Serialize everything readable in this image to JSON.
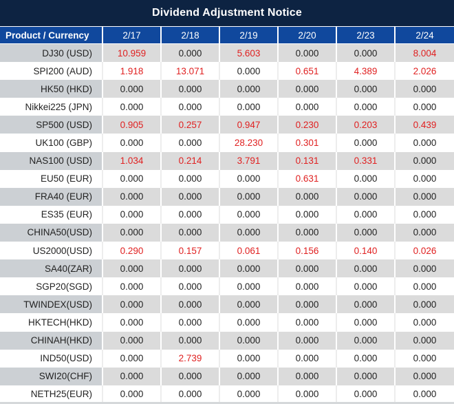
{
  "title": "Dividend Adjustment Notice",
  "chart_data": {
    "type": "table",
    "title": "Dividend Adjustment Notice",
    "columns": [
      "Product / Currency",
      "2/17",
      "2/18",
      "2/19",
      "2/20",
      "2/23",
      "2/24"
    ],
    "rows": [
      {
        "product": "DJ30 (USD)",
        "values": [
          "10.959",
          "0.000",
          "5.603",
          "0.000",
          "0.000",
          "8.004"
        ]
      },
      {
        "product": "SPI200 (AUD)",
        "values": [
          "1.918",
          "13.071",
          "0.000",
          "0.651",
          "4.389",
          "2.026"
        ]
      },
      {
        "product": "HK50 (HKD)",
        "values": [
          "0.000",
          "0.000",
          "0.000",
          "0.000",
          "0.000",
          "0.000"
        ]
      },
      {
        "product": "Nikkei225 (JPN)",
        "values": [
          "0.000",
          "0.000",
          "0.000",
          "0.000",
          "0.000",
          "0.000"
        ]
      },
      {
        "product": "SP500 (USD)",
        "values": [
          "0.905",
          "0.257",
          "0.947",
          "0.230",
          "0.203",
          "0.439"
        ]
      },
      {
        "product": "UK100 (GBP)",
        "values": [
          "0.000",
          "0.000",
          "28.230",
          "0.301",
          "0.000",
          "0.000"
        ]
      },
      {
        "product": "NAS100 (USD)",
        "values": [
          "1.034",
          "0.214",
          "3.791",
          "0.131",
          "0.331",
          "0.000"
        ]
      },
      {
        "product": "EU50 (EUR)",
        "values": [
          "0.000",
          "0.000",
          "0.000",
          "0.631",
          "0.000",
          "0.000"
        ]
      },
      {
        "product": "FRA40 (EUR)",
        "values": [
          "0.000",
          "0.000",
          "0.000",
          "0.000",
          "0.000",
          "0.000"
        ]
      },
      {
        "product": "ES35 (EUR)",
        "values": [
          "0.000",
          "0.000",
          "0.000",
          "0.000",
          "0.000",
          "0.000"
        ]
      },
      {
        "product": "CHINA50(USD)",
        "values": [
          "0.000",
          "0.000",
          "0.000",
          "0.000",
          "0.000",
          "0.000"
        ]
      },
      {
        "product": "US2000(USD)",
        "values": [
          "0.290",
          "0.157",
          "0.061",
          "0.156",
          "0.140",
          "0.026"
        ]
      },
      {
        "product": "SA40(ZAR)",
        "values": [
          "0.000",
          "0.000",
          "0.000",
          "0.000",
          "0.000",
          "0.000"
        ]
      },
      {
        "product": "SGP20(SGD)",
        "values": [
          "0.000",
          "0.000",
          "0.000",
          "0.000",
          "0.000",
          "0.000"
        ]
      },
      {
        "product": "TWINDEX(USD)",
        "values": [
          "0.000",
          "0.000",
          "0.000",
          "0.000",
          "0.000",
          "0.000"
        ]
      },
      {
        "product": "HKTECH(HKD)",
        "values": [
          "0.000",
          "0.000",
          "0.000",
          "0.000",
          "0.000",
          "0.000"
        ]
      },
      {
        "product": "CHINAH(HKD)",
        "values": [
          "0.000",
          "0.000",
          "0.000",
          "0.000",
          "0.000",
          "0.000"
        ]
      },
      {
        "product": "IND50(USD)",
        "values": [
          "0.000",
          "2.739",
          "0.000",
          "0.000",
          "0.000",
          "0.000"
        ]
      },
      {
        "product": "SWI20(CHF)",
        "values": [
          "0.000",
          "0.000",
          "0.000",
          "0.000",
          "0.000",
          "0.000"
        ]
      },
      {
        "product": "NETH25(EUR)",
        "values": [
          "0.000",
          "0.000",
          "0.000",
          "0.000",
          "0.000",
          "0.000"
        ]
      }
    ],
    "legend_note": "non-zero dividend adjustments rendered in red, zeros in black",
    "layout": {
      "row_striping": "alternating gray/white starting gray",
      "first_column_align": "right",
      "value_align": "center"
    }
  },
  "colors": {
    "title_bg": "#0d2342",
    "header_bg": "#10489d",
    "header_text": "#ffffff",
    "stripe_product_bg": "#ccd0d4",
    "stripe_value_bg": "#dbdbdb",
    "value_red": "#e02020",
    "text_dark": "#222222"
  }
}
